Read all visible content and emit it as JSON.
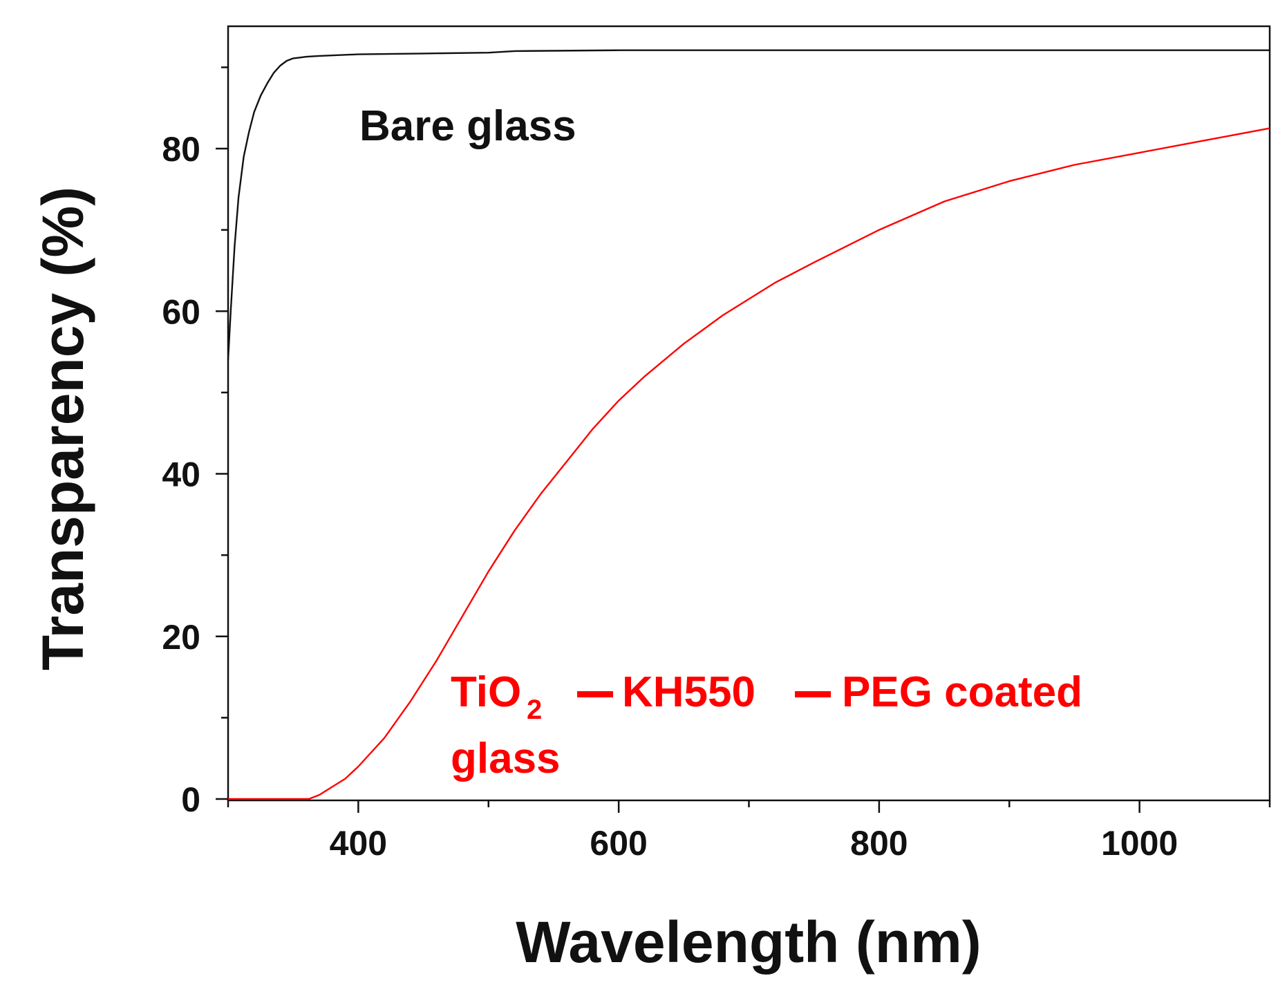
{
  "chart_data": {
    "type": "line",
    "title": "",
    "xlabel": "Wavelength (nm)",
    "ylabel": "Transparency (%)",
    "xlim": [
      300,
      1100
    ],
    "ylim": [
      0,
      95
    ],
    "x_ticks": [
      400,
      600,
      800,
      1000
    ],
    "y_ticks": [
      0,
      20,
      40,
      60,
      80
    ],
    "grid": false,
    "legend": "none",
    "series": [
      {
        "color": "#111111",
        "x": [
          300,
          302,
          305,
          308,
          312,
          316,
          320,
          325,
          330,
          335,
          340,
          345,
          350,
          355,
          360,
          370,
          400,
          450,
          500,
          520,
          600,
          700,
          800,
          900,
          1000,
          1100
        ],
        "y": [
          54,
          60,
          68,
          74,
          79,
          82,
          84.5,
          86.5,
          88,
          89.3,
          90.2,
          90.8,
          91.1,
          91.2,
          91.3,
          91.4,
          91.6,
          91.7,
          91.8,
          92.0,
          92.1,
          92.1,
          92.1,
          92.1,
          92.1,
          92.1
        ]
      },
      {
        "color": "#ff0000",
        "x": [
          300,
          340,
          362,
          370,
          380,
          390,
          400,
          420,
          440,
          460,
          480,
          500,
          520,
          540,
          560,
          580,
          600,
          620,
          650,
          680,
          700,
          720,
          750,
          800,
          850,
          900,
          950,
          1000,
          1050,
          1100
        ],
        "y": [
          0,
          0,
          0,
          0.5,
          1.5,
          2.5,
          4,
          7.5,
          12,
          17,
          22.5,
          28,
          33,
          37.5,
          41.5,
          45.5,
          49,
          52,
          56,
          59.5,
          61.5,
          63.5,
          66,
          70,
          73.5,
          76,
          78,
          79.5,
          81,
          82.5
        ]
      }
    ],
    "annotations": {
      "bare_glass": "Bare glass",
      "coated_part1": "TiO",
      "coated_sub": "2",
      "coated_part2": "KH550",
      "coated_part3": "PEG coated",
      "coated_line2": "glass"
    }
  }
}
